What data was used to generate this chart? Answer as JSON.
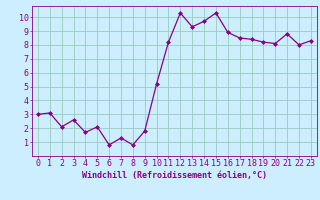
{
  "x": [
    0,
    1,
    2,
    3,
    4,
    5,
    6,
    7,
    8,
    9,
    10,
    11,
    12,
    13,
    14,
    15,
    16,
    17,
    18,
    19,
    20,
    21,
    22,
    23
  ],
  "y": [
    3.0,
    3.1,
    2.1,
    2.6,
    1.7,
    2.1,
    0.8,
    1.3,
    0.8,
    1.8,
    5.2,
    8.2,
    10.3,
    9.3,
    9.7,
    10.3,
    8.9,
    8.5,
    8.4,
    8.2,
    8.1,
    8.8,
    8.0,
    8.3
  ],
  "line_color": "#880088",
  "marker": "D",
  "markersize": 2,
  "linewidth": 0.9,
  "bg_color": "#cceeff",
  "grid_color": "#99ccbb",
  "xlabel": "Windchill (Refroidissement éolien,°C)",
  "xlabel_color": "#880088",
  "tick_color": "#880088",
  "axis_color": "#880088",
  "ylim": [
    0,
    10.8
  ],
  "xlim": [
    -0.5,
    23.5
  ],
  "yticks": [
    1,
    2,
    3,
    4,
    5,
    6,
    7,
    8,
    9,
    10
  ],
  "xticks": [
    0,
    1,
    2,
    3,
    4,
    5,
    6,
    7,
    8,
    9,
    10,
    11,
    12,
    13,
    14,
    15,
    16,
    17,
    18,
    19,
    20,
    21,
    22,
    23
  ],
  "xlabel_fontsize": 6.0,
  "tick_fontsize": 6.0,
  "font_family": "monospace"
}
